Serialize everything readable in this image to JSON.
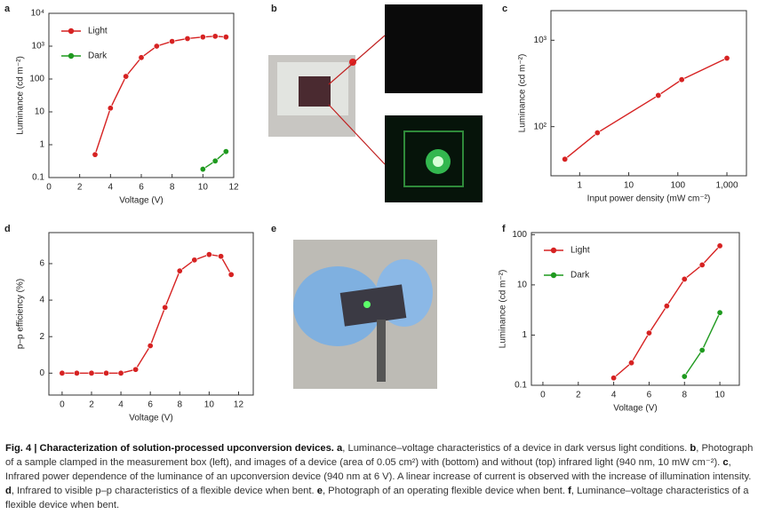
{
  "chart_data": [
    {
      "type": "line",
      "label": "a",
      "xlabel": "Voltage (V)",
      "ylabel": "Luminance (cd m⁻²)",
      "yscale": "log",
      "xlim": [
        0,
        12
      ],
      "xticks": [
        0,
        2,
        4,
        6,
        8,
        10,
        12
      ],
      "ylim": [
        0.1,
        10000
      ],
      "yticks": [
        0.1,
        1,
        10,
        100,
        {
          "value": 1000,
          "label": "10³"
        },
        {
          "value": 10000,
          "label": "10⁴"
        }
      ],
      "legend": "upper left",
      "series": [
        {
          "name": "Light",
          "color": "#d62222",
          "x": [
            3,
            4,
            5,
            6,
            7,
            8,
            9,
            10,
            10.8,
            11.5
          ],
          "values": [
            0.5,
            13,
            120,
            450,
            1000,
            1400,
            1700,
            1900,
            2000,
            1900
          ]
        },
        {
          "name": "Dark",
          "color": "#1f9a1f",
          "x": [
            10,
            10.8,
            11.5
          ],
          "values": [
            0.18,
            0.32,
            0.62
          ]
        }
      ]
    },
    {
      "type": "line",
      "label": "c",
      "xlabel": "Input power density (mW cm⁻²)",
      "ylabel": "Luminance (cd m⁻²)",
      "xscale": "log",
      "yscale": "log",
      "xlim": [
        0.26,
        2500
      ],
      "xticks": [
        1,
        10,
        100,
        {
          "value": 1000,
          "label": "1,000"
        }
      ],
      "ylim": [
        27,
        2200
      ],
      "yticks": [
        {
          "value": 100,
          "label": "10²"
        },
        {
          "value": 1000,
          "label": "10³"
        }
      ],
      "series": [
        {
          "color": "#d62222",
          "x": [
            0.5,
            2.3,
            40,
            120,
            1000
          ],
          "values": [
            42,
            85,
            230,
            350,
            620
          ]
        }
      ]
    },
    {
      "type": "line",
      "label": "d",
      "xlabel": "Voltage (V)",
      "ylabel": "p–p efficiency (%)",
      "xlim": [
        -0.9,
        13
      ],
      "xticks": [
        0,
        2,
        4,
        6,
        8,
        10,
        12
      ],
      "ylim": [
        -1.2,
        7.7
      ],
      "yticks": [
        0,
        2,
        4,
        6
      ],
      "series": [
        {
          "color": "#d62222",
          "x": [
            0,
            1,
            2,
            3,
            4,
            5,
            6,
            7,
            8,
            9,
            10,
            10.8,
            11.5
          ],
          "values": [
            0,
            0,
            0,
            0,
            0,
            0.2,
            1.5,
            3.6,
            5.6,
            6.2,
            6.5,
            6.4,
            5.4
          ]
        }
      ]
    },
    {
      "type": "line",
      "label": "f",
      "xlabel": "Voltage (V)",
      "ylabel": "Luminance (cd m⁻²)",
      "yscale": "log",
      "xlim": [
        -0.65,
        11.1
      ],
      "xticks": [
        0,
        2,
        4,
        6,
        8,
        10
      ],
      "ylim": [
        0.1,
        110
      ],
      "yticks": [
        0.1,
        1,
        10,
        100
      ],
      "legend": "upper left",
      "series": [
        {
          "name": "Light",
          "color": "#d62222",
          "x": [
            4,
            5,
            6,
            7,
            8,
            9,
            10
          ],
          "values": [
            0.14,
            0.28,
            1.1,
            3.8,
            13,
            25,
            60
          ]
        },
        {
          "name": "Dark",
          "color": "#1f9a1f",
          "x": [
            8,
            9,
            10
          ],
          "values": [
            0.15,
            0.5,
            2.8
          ]
        }
      ]
    }
  ],
  "photos": [
    {
      "label": "b"
    },
    {
      "label": "e"
    }
  ],
  "caption": [
    {
      "text": "Fig. 4 | Characterization of solution-processed upconversion devices. a",
      "bold": true
    },
    {
      "text": ", Luminance–voltage characteristics of a device in dark versus light conditions. ",
      "bold": false
    },
    {
      "text": "b",
      "bold": true
    },
    {
      "text": ", Photograph of a sample clamped in the measurement box (left), and images of a device (area of 0.05 cm²) with (bottom) and without (top) infrared light (940 nm, 10 mW cm⁻²). ",
      "bold": false
    },
    {
      "text": "c",
      "bold": true
    },
    {
      "text": ", Infrared power dependence of the luminance of an upconversion device (940 nm at 6 V). A linear increase of current is observed with the increase of illumination intensity. ",
      "bold": false
    },
    {
      "text": "d",
      "bold": true
    },
    {
      "text": ", Infrared to visible p–p characteristics of a flexible device when bent. ",
      "bold": false
    },
    {
      "text": "e",
      "bold": true
    },
    {
      "text": ", Photograph of an operating flexible device when bent. ",
      "bold": false
    },
    {
      "text": "f",
      "bold": true
    },
    {
      "text": ", Luminance–voltage characteristics of a flexible device when bent.",
      "bold": false
    }
  ]
}
